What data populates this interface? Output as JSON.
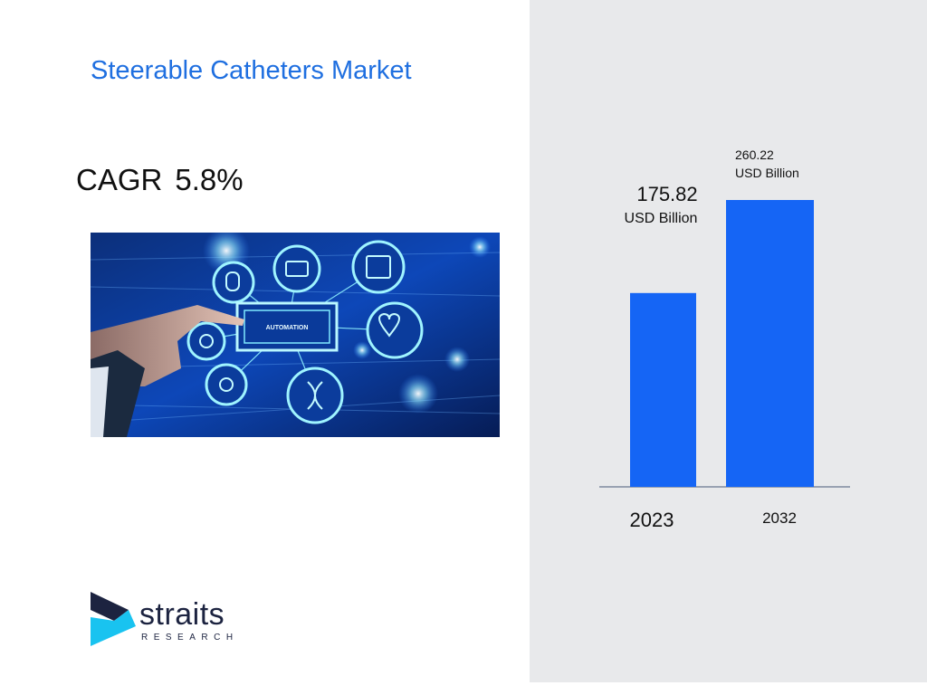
{
  "title": "Steerable Catheters Market",
  "cagr": {
    "label": "CAGR",
    "value": "5.8%"
  },
  "illustration": {
    "label": "AUTOMATION"
  },
  "logo": {
    "name": "straits",
    "sub": "RESEARCH",
    "colors": {
      "arrow_dark": "#1c2340",
      "arrow_light": "#19c3f0"
    }
  },
  "colors": {
    "title": "#1f6fe0",
    "bar": "#1565f5",
    "panel": "#e8e9eb",
    "axis": "#7f8a9f"
  },
  "chart_data": {
    "type": "bar",
    "categories": [
      "2023",
      "2032"
    ],
    "values": [
      175.82,
      260.22
    ],
    "value_labels": [
      {
        "value": "175.82",
        "unit": "USD Billion"
      },
      {
        "value": "260.22",
        "unit": "USD Billion"
      }
    ],
    "ylim": [
      0,
      260.22
    ],
    "grid": false,
    "legend": "none"
  }
}
